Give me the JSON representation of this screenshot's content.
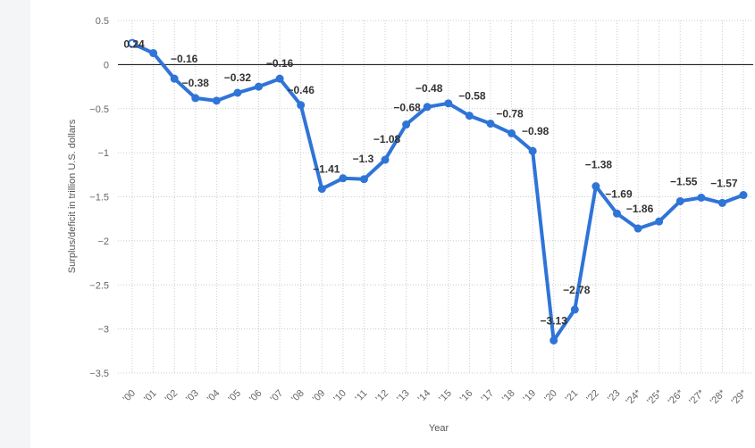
{
  "chart_data": {
    "type": "line",
    "xlabel": "Year",
    "ylabel": "Surplus/deficit in trillion U.S. dollars",
    "ylim": [
      -3.5,
      0.5
    ],
    "yticks": [
      "0.5",
      "0",
      "−0.5",
      "−1",
      "−1.5",
      "−2",
      "−2.5",
      "−3",
      "−3.5"
    ],
    "ytick_values": [
      0.5,
      0,
      -0.5,
      -1,
      -1.5,
      -2,
      -2.5,
      -3,
      -3.5
    ],
    "categories": [
      "'00",
      "'01",
      "'02",
      "'03",
      "'04",
      "'05",
      "'06",
      "'07",
      "'08",
      "'09",
      "'10",
      "'11",
      "'12",
      "'13",
      "'14",
      "'15",
      "'16",
      "'17",
      "'18",
      "'19",
      "'20",
      "'21",
      "'22",
      "'23",
      "'24*",
      "'25*",
      "'26*",
      "'27*",
      "'28*",
      "'29*"
    ],
    "series": [
      {
        "color": "#2f74d7",
        "values": [
          0.24,
          0.13,
          -0.16,
          -0.38,
          -0.41,
          -0.32,
          -0.25,
          -0.16,
          -0.46,
          -1.41,
          -1.29,
          -1.3,
          -1.08,
          -0.68,
          -0.48,
          -0.44,
          -0.58,
          -0.67,
          -0.78,
          -0.98,
          -3.13,
          -2.78,
          -1.38,
          -1.69,
          -1.86,
          -1.78,
          -1.55,
          -1.51,
          -1.57,
          -1.48
        ]
      }
    ],
    "data_labels": [
      {
        "index": 0,
        "text": "0.24"
      },
      {
        "index": 2,
        "text": "−0.16"
      },
      {
        "index": 3,
        "text": "−0.38"
      },
      {
        "index": 5,
        "text": "−0.32"
      },
      {
        "index": 7,
        "text": "−0.16"
      },
      {
        "index": 8,
        "text": "−0.46"
      },
      {
        "index": 9,
        "text": "−1.41"
      },
      {
        "index": 11,
        "text": "−1.3"
      },
      {
        "index": 12,
        "text": "−1.08"
      },
      {
        "index": 13,
        "text": "−0.68"
      },
      {
        "index": 14,
        "text": "−0.48"
      },
      {
        "index": 16,
        "text": "−0.58"
      },
      {
        "index": 18,
        "text": "−0.78"
      },
      {
        "index": 19,
        "text": "−0.98"
      },
      {
        "index": 20,
        "text": "−3.13"
      },
      {
        "index": 21,
        "text": "−2.78"
      },
      {
        "index": 22,
        "text": "−1.38"
      },
      {
        "index": 23,
        "text": "−1.69"
      },
      {
        "index": 24,
        "text": "−1.86"
      },
      {
        "index": 26,
        "text": "−1.55"
      },
      {
        "index": 28,
        "text": "−1.57"
      }
    ],
    "grid": true,
    "zero_line": true,
    "colors": {
      "line": "#2f74d7",
      "grid": "#cccccc",
      "zero": "#000000"
    }
  }
}
